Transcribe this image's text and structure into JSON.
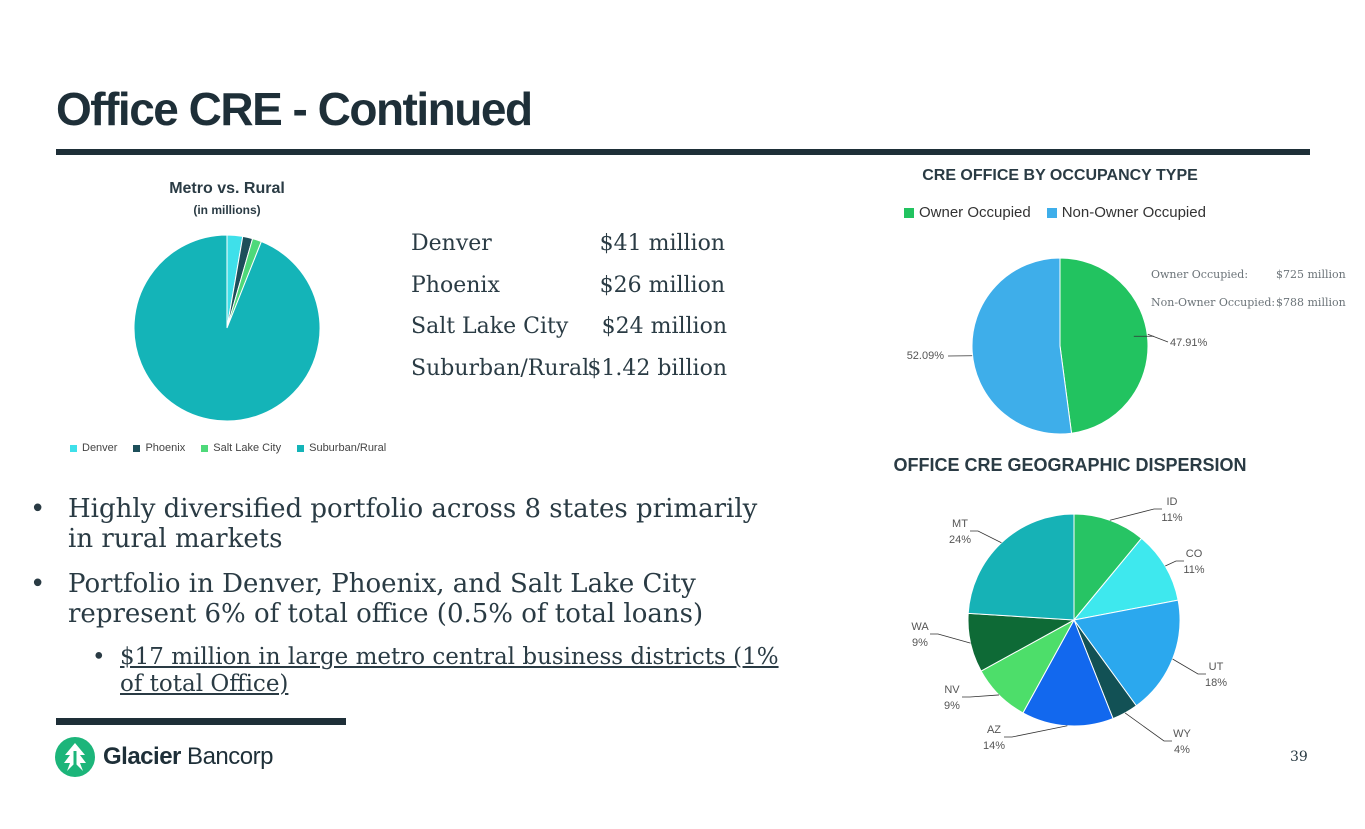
{
  "slide": {
    "title": "Office CRE - Continued",
    "page_number": "39",
    "logo_text_bold": "Glacier",
    "logo_text_light": " Bancorp"
  },
  "metro_text": [
    {
      "name": "Denver",
      "value": "$41 million"
    },
    {
      "name": "Phoenix",
      "value": "$26 million"
    },
    {
      "name": "Salt Lake City",
      "value": "$24 million"
    },
    {
      "name": "Suburban/Rural",
      "value": "$1.42 billion"
    }
  ],
  "bullets": {
    "b1": "Highly diversified portfolio across 8 states primarily in rural markets",
    "b2": "Portfolio in Denver, Phoenix, and Salt Lake City represent 6% of total office (0.5% of total loans)",
    "b3": "$17 million in large metro central business districts (1% of total Office)"
  },
  "occupancy_notes": {
    "owner_label": "Owner Occupied:",
    "owner_value": "$725 million",
    "non_owner_label": "Non-Owner Occupied:",
    "non_owner_value": "$788 million"
  },
  "chart_data": [
    {
      "type": "pie",
      "title": "Metro vs. Rural",
      "subtitle": "(in millions)",
      "categories": [
        "Denver",
        "Phoenix",
        "Salt Lake City",
        "Suburban/Rural"
      ],
      "values": [
        41,
        26,
        24,
        1420
      ],
      "colors": [
        "#3fe0ea",
        "#1d4f5a",
        "#4ed97a",
        "#14b4b8"
      ],
      "legend": "bottom"
    },
    {
      "type": "pie",
      "title": "CRE OFFICE BY OCCUPANCY TYPE",
      "categories": [
        "Owner Occupied",
        "Non-Owner Occupied"
      ],
      "values": [
        47.91,
        52.09
      ],
      "data_labels": [
        "47.91%",
        "52.09%"
      ],
      "colors": [
        "#22c360",
        "#3eaeea"
      ],
      "legend": "top"
    },
    {
      "type": "pie",
      "title": "OFFICE CRE GEOGRAPHIC DISPERSION",
      "categories": [
        "ID",
        "CO",
        "UT",
        "WY",
        "AZ",
        "NV",
        "WA",
        "MT"
      ],
      "values": [
        11,
        11,
        18,
        4,
        14,
        9,
        9,
        24
      ],
      "data_labels": [
        "11%",
        "11%",
        "18%",
        "4%",
        "14%",
        "9%",
        "9%",
        "24%"
      ],
      "colors": [
        "#27c464",
        "#3ee8ee",
        "#2ba8ee",
        "#125155",
        "#1268ee",
        "#4dde6a",
        "#0e6a36",
        "#16b2b6"
      ],
      "legend": "none"
    }
  ]
}
